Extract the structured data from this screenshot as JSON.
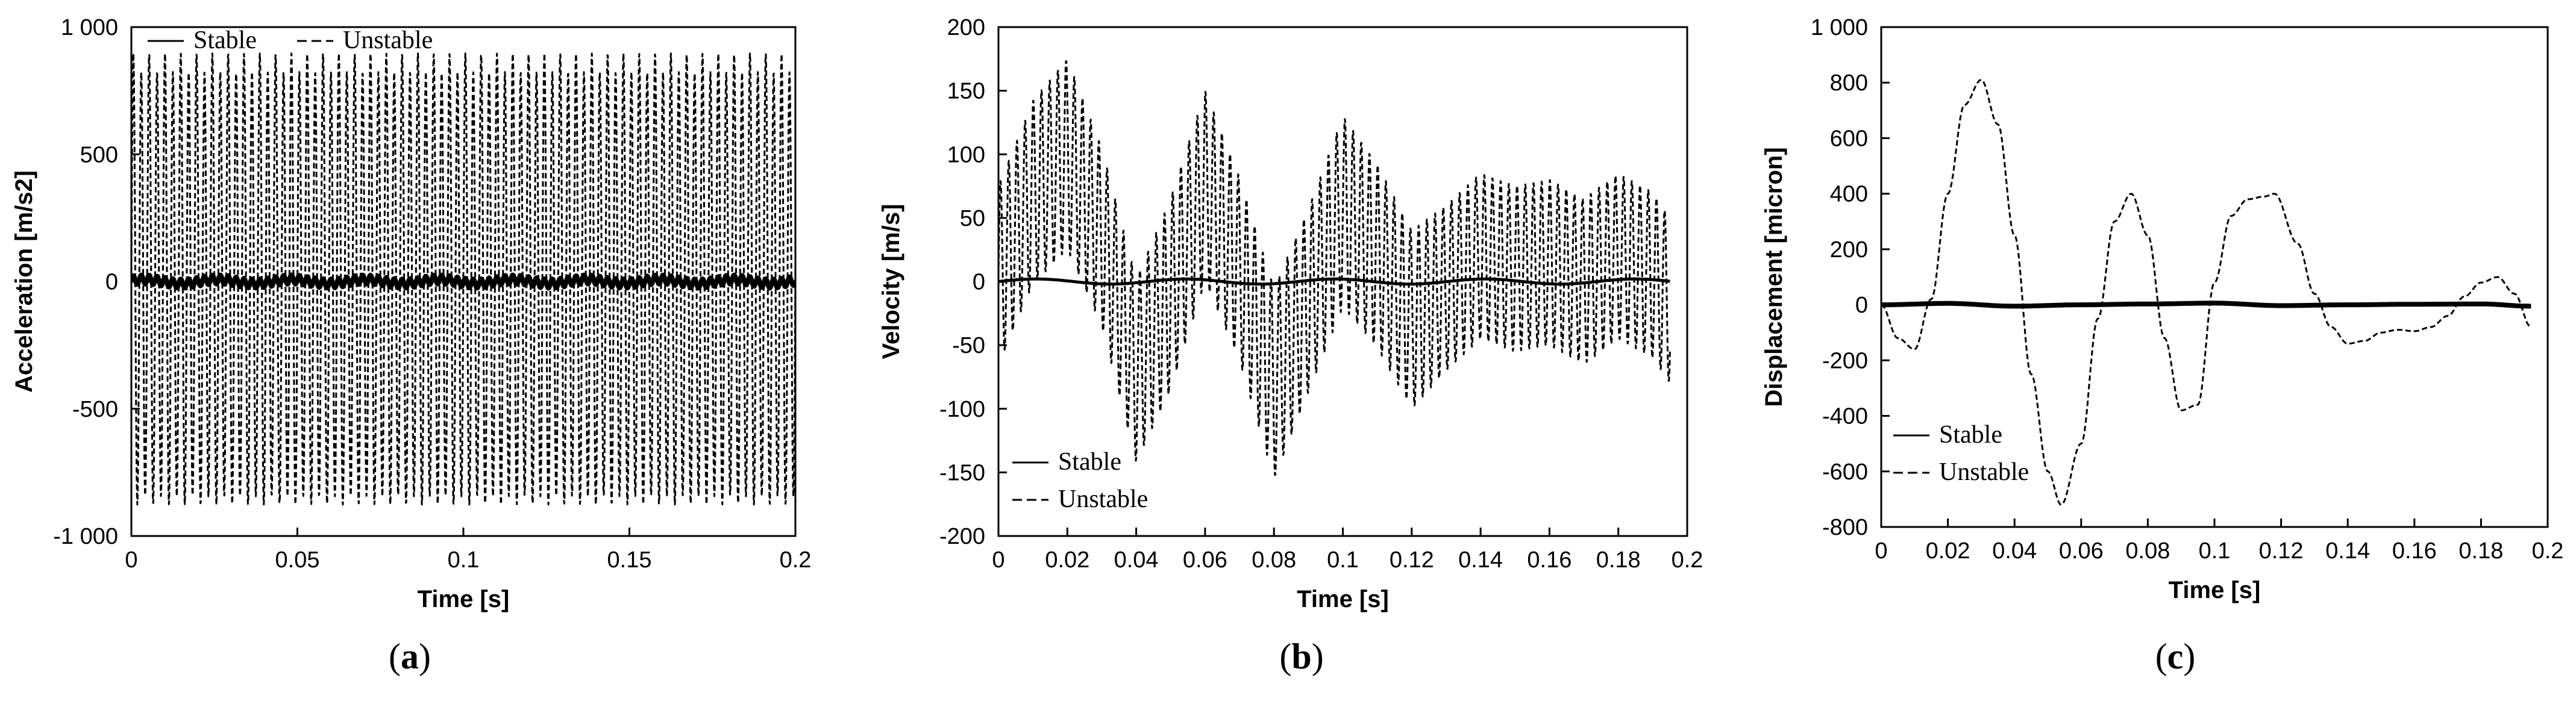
{
  "chart_data": [
    {
      "type": "line",
      "caption": {
        "open": "(",
        "letter": "a",
        "close": ")"
      },
      "xlabel": "Time [s]",
      "ylabel": "Acceleration [m/s2]",
      "xlim": [
        0,
        0.2
      ],
      "ylim": [
        -1000,
        1000
      ],
      "xticks": [
        0,
        0.05,
        0.1,
        0.15,
        0.2
      ],
      "xtick_labels": [
        "0",
        "0.05",
        "0.1",
        "0.15",
        "0.2"
      ],
      "yticks": [
        -1000,
        -500,
        0,
        500,
        1000
      ],
      "ytick_labels": [
        "-1 000",
        "-500",
        "0",
        "500",
        "1 000"
      ],
      "grid": false,
      "legend": {
        "placement": "top-left",
        "entries": [
          "Stable",
          "Unstable"
        ]
      },
      "series": [
        {
          "name": "Stable",
          "style": "solid",
          "signal": {
            "dt": 0.0002,
            "terms": [
              {
                "amp": 18,
                "freq": 420,
                "phase": 0
              },
              {
                "amp": 8,
                "freq": 45,
                "phase": 0.5
              }
            ]
          },
          "x_end": 0.2
        },
        {
          "name": "Unstable",
          "style": "dashed",
          "signal": {
            "dt": 0.0001,
            "terms": [
              {
                "amp": 860,
                "freq": 420,
                "phase": 0
              },
              {
                "amp": 40,
                "freq": 210,
                "phase": 1.2
              }
            ]
          },
          "x_end": 0.2
        }
      ]
    },
    {
      "type": "line",
      "caption": {
        "open": "(",
        "letter": "b",
        "close": ")"
      },
      "xlabel": "Time [s]",
      "ylabel": "Velocity [m/s]",
      "xlim": [
        0,
        0.2
      ],
      "ylim": [
        -200,
        200
      ],
      "xticks": [
        0,
        0.02,
        0.04,
        0.06,
        0.08,
        0.1,
        0.12,
        0.14,
        0.16,
        0.18,
        0.2
      ],
      "xtick_labels": [
        "0",
        "0.02",
        "0.04",
        "0.06",
        "0.08",
        "0.1",
        "0.12",
        "0.14",
        "0.16",
        "0.18",
        "0.2"
      ],
      "yticks": [
        -200,
        -150,
        -100,
        -50,
        0,
        50,
        100,
        150,
        200
      ],
      "ytick_labels": [
        "-200",
        "-150",
        "-100",
        "-50",
        "0",
        "50",
        "100",
        "150",
        "200"
      ],
      "grid": false,
      "legend": {
        "placement": "bottom-left",
        "entries": [
          "Stable",
          "Unstable"
        ]
      },
      "series": [
        {
          "name": "Stable",
          "style": "solid",
          "signal": {
            "dt": 0.0002,
            "terms": [
              {
                "amp": 2,
                "freq": 23,
                "phase": 0
              }
            ]
          },
          "x_end": 0.195
        },
        {
          "name": "Unstable",
          "style": "dashed",
          "envelope": {
            "t": [
              0,
              0.01,
              0.02,
              0.03,
              0.04,
              0.05,
              0.06,
              0.07,
              0.08,
              0.09,
              0.1,
              0.11,
              0.12,
              0.13,
              0.14,
              0.15,
              0.16,
              0.17,
              0.18,
              0.19,
              0.195
            ],
            "center": [
              5,
              70,
              100,
              35,
              -70,
              -10,
              75,
              10,
              -80,
              -15,
              55,
              20,
              -30,
              -5,
              20,
              10,
              15,
              0,
              20,
              5,
              -15
            ],
            "halfwidth": [
              70,
              72,
              75,
              70,
              72,
              75,
              75,
              72,
              75,
              72,
              75,
              72,
              70,
              65,
              65,
              65,
              65,
              65,
              65,
              65,
              65
            ],
            "carrier_freq": 420
          },
          "x_end": 0.195
        }
      ]
    },
    {
      "type": "line",
      "caption": {
        "open": "(",
        "letter": "c",
        "close": ")"
      },
      "xlabel": "Time [s]",
      "ylabel": "Displacement [micron]",
      "xlim": [
        0,
        0.2
      ],
      "ylim": [
        -800,
        1000
      ],
      "xticks": [
        0,
        0.02,
        0.04,
        0.06,
        0.08,
        0.1,
        0.12,
        0.14,
        0.16,
        0.18,
        0.2
      ],
      "xtick_labels": [
        "0",
        "0.02",
        "0.04",
        "0.06",
        "0.08",
        "0.1",
        "0.12",
        "0.14",
        "0.16",
        "0.18",
        "0.2"
      ],
      "yticks": [
        -800,
        -600,
        -400,
        -200,
        0,
        200,
        400,
        600,
        800,
        1000
      ],
      "ytick_labels": [
        "-800",
        "-600",
        "-400",
        "-200",
        "0",
        "200",
        "400",
        "600",
        "800",
        "1 000"
      ],
      "grid": false,
      "legend": {
        "placement": "center-left",
        "entries": [
          "Stable",
          "Unstable"
        ]
      },
      "series": [
        {
          "name": "Stable",
          "style": "solid",
          "x": [
            0,
            0.02,
            0.04,
            0.06,
            0.08,
            0.1,
            0.12,
            0.14,
            0.16,
            0.18,
            0.195
          ],
          "y": [
            0,
            5,
            -5,
            0,
            3,
            6,
            -3,
            0,
            2,
            3,
            -5
          ]
        },
        {
          "name": "Unstable",
          "style": "dashed",
          "x": [
            0,
            0.005,
            0.01,
            0.015,
            0.02,
            0.025,
            0.03,
            0.035,
            0.04,
            0.045,
            0.05,
            0.054,
            0.06,
            0.065,
            0.07,
            0.075,
            0.08,
            0.085,
            0.09,
            0.095,
            0.1,
            0.105,
            0.11,
            0.115,
            0.118,
            0.125,
            0.13,
            0.135,
            0.14,
            0.145,
            0.15,
            0.155,
            0.16,
            0.165,
            0.17,
            0.175,
            0.18,
            0.185,
            0.19,
            0.195
          ],
          "y": [
            0,
            -120,
            -160,
            20,
            400,
            720,
            810,
            650,
            250,
            -250,
            -600,
            -720,
            -500,
            -50,
            300,
            400,
            250,
            -120,
            -380,
            -360,
            80,
            320,
            380,
            390,
            400,
            220,
            40,
            -80,
            -140,
            -130,
            -100,
            -90,
            -95,
            -80,
            -40,
            30,
            80,
            100,
            40,
            -80
          ]
        }
      ]
    }
  ]
}
